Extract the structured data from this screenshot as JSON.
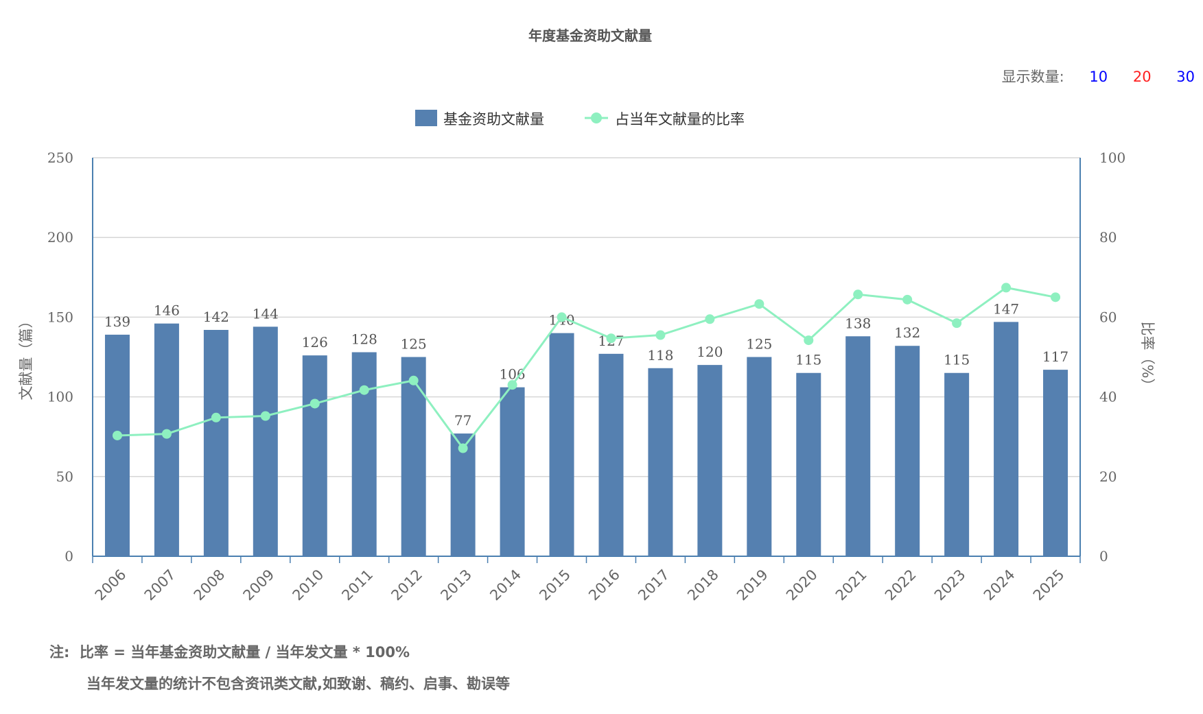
{
  "header": {
    "title": "年度基金资助文献量"
  },
  "display_count": {
    "label": "显示数量:",
    "options": [
      {
        "label": "10",
        "color": "#0000ff"
      },
      {
        "label": "20",
        "color": "#ff2020"
      },
      {
        "label": "30",
        "color": "#0000ff"
      }
    ]
  },
  "notes": {
    "prefix": "注:",
    "line1": "比率 = 当年基金资助文献量 / 当年发文量 * 100%",
    "line2": "当年发文量的统计不包含资讯类文献,如致谢、稿约、启事、勘误等"
  },
  "chart_data": {
    "type": "bar",
    "title": "年度基金资助文献量",
    "categories": [
      "2006",
      "2007",
      "2008",
      "2009",
      "2010",
      "2011",
      "2012",
      "2013",
      "2014",
      "2015",
      "2016",
      "2017",
      "2018",
      "2019",
      "2020",
      "2021",
      "2022",
      "2023",
      "2024",
      "2025"
    ],
    "series": [
      {
        "name": "基金资助文献量",
        "type": "bar",
        "axis": "left",
        "color": "#5580b0",
        "values": [
          139,
          146,
          142,
          144,
          126,
          128,
          125,
          77,
          106,
          140,
          127,
          118,
          120,
          125,
          115,
          138,
          132,
          115,
          147,
          117
        ]
      },
      {
        "name": "占当年文献量的比率",
        "type": "line",
        "axis": "right",
        "color": "#8ef0c0",
        "values": [
          30.3,
          30.7,
          34.8,
          35.2,
          38.3,
          41.7,
          44.1,
          27.1,
          43.0,
          60.0,
          54.7,
          55.5,
          59.5,
          63.3,
          54.2,
          65.7,
          64.4,
          58.5,
          67.4,
          65.0
        ]
      }
    ],
    "ylabel": "文献量（篇）",
    "ylim": [
      0,
      250
    ],
    "yticks": [
      0,
      50,
      100,
      150,
      200,
      250
    ],
    "y2label": "比率（%）",
    "y2lim": [
      0,
      100
    ],
    "y2ticks": [
      0,
      20,
      40,
      60,
      80,
      100
    ],
    "grid": true,
    "legend": "top-center"
  }
}
